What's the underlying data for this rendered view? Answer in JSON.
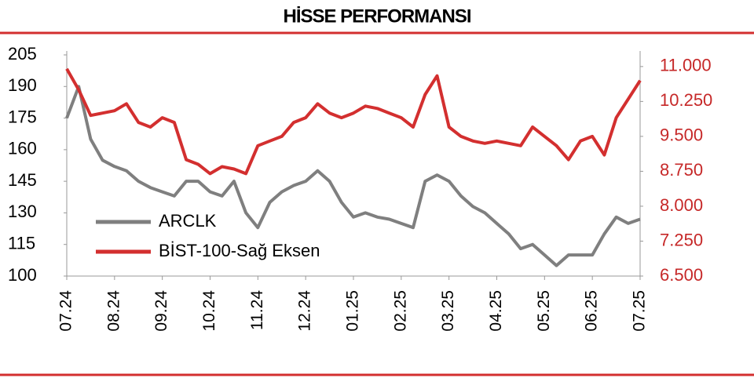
{
  "chart_data": {
    "type": "line",
    "title": "HİSSE PERFORMANSI",
    "categories": [
      "07.24",
      null,
      null,
      null,
      "08.24",
      null,
      null,
      null,
      "09.24",
      null,
      null,
      null,
      "10.24",
      null,
      null,
      null,
      "11.24",
      null,
      null,
      null,
      "12.24",
      null,
      null,
      null,
      "01.25",
      null,
      null,
      null,
      "02.25",
      null,
      null,
      null,
      "03.25",
      null,
      null,
      null,
      "04.25",
      null,
      null,
      null,
      "05.25",
      null,
      null,
      null,
      "06.25",
      null,
      null,
      null,
      "07.25"
    ],
    "series": [
      {
        "name": "ARCLK",
        "color": "#7f7f7f",
        "axis": "y",
        "values": [
          175,
          190,
          165,
          155,
          152,
          150,
          145,
          142,
          140,
          138,
          145,
          145,
          140,
          138,
          145,
          130,
          123,
          135,
          140,
          143,
          145,
          150,
          145,
          135,
          128,
          130,
          128,
          127,
          125,
          123,
          145,
          148,
          145,
          138,
          133,
          130,
          125,
          120,
          113,
          115,
          110,
          105,
          110,
          110,
          110,
          120,
          128,
          125,
          127
        ]
      },
      {
        "name": "BİST-100-Sağ Eksen",
        "color": "#d32f2f",
        "axis": "y2",
        "values": [
          10950,
          10500,
          9950,
          10000,
          10050,
          10200,
          9800,
          9700,
          9900,
          9800,
          9000,
          8900,
          8700,
          8850,
          8800,
          8700,
          9300,
          9400,
          9500,
          9800,
          9900,
          10200,
          10000,
          9900,
          10000,
          10150,
          10100,
          10000,
          9900,
          9700,
          10400,
          10800,
          9700,
          9500,
          9400,
          9350,
          9400,
          9350,
          9300,
          9700,
          9500,
          9300,
          9000,
          9400,
          9500,
          9100,
          9900,
          10300,
          10700
        ]
      }
    ],
    "ylim": [
      100,
      205
    ],
    "yticks": [
      100,
      115,
      130,
      145,
      160,
      175,
      190,
      205
    ],
    "y2lim": [
      6500,
      11250
    ],
    "y2ticks": [
      {
        "value": 6500,
        "label": "6.500"
      },
      {
        "value": 7250,
        "label": "7.250"
      },
      {
        "value": 8000,
        "label": "8.000"
      },
      {
        "value": 8750,
        "label": "8.750"
      },
      {
        "value": 9500,
        "label": "9.500"
      },
      {
        "value": 10250,
        "label": "10.250"
      },
      {
        "value": 11000,
        "label": "11.000"
      }
    ],
    "legend": "lower-left"
  }
}
